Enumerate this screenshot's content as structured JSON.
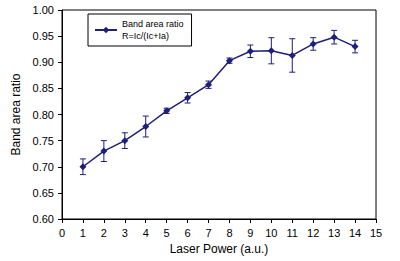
{
  "chart_data": {
    "type": "line",
    "x_label": "Laser Power (a.u.)",
    "y_label": "Band area ratio",
    "annotation": "R=Ic/(Ic+Ia)",
    "x": [
      1,
      2,
      3,
      4,
      5,
      6,
      7,
      8,
      9,
      10,
      11,
      12,
      13,
      14
    ],
    "series": [
      {
        "name": "Band area ratio",
        "color": "#1f1f7a",
        "marker": "diamond",
        "line_style": "solid",
        "values": [
          0.7,
          0.73,
          0.75,
          0.777,
          0.807,
          0.832,
          0.857,
          0.903,
          0.921,
          0.922,
          0.913,
          0.935,
          0.948,
          0.93
        ],
        "errors": [
          0.015,
          0.02,
          0.015,
          0.02,
          0.005,
          0.01,
          0.007,
          0.005,
          0.012,
          0.025,
          0.032,
          0.012,
          0.013,
          0.012
        ]
      }
    ],
    "xlim": [
      0,
      15
    ],
    "xticks": [
      0,
      1,
      2,
      3,
      4,
      5,
      6,
      7,
      8,
      9,
      10,
      11,
      12,
      13,
      14,
      15
    ],
    "ylim": [
      0.6,
      1.0
    ],
    "yticks": [
      {
        "value": 0.6,
        "label": "0.60"
      },
      {
        "value": 0.65,
        "label": "0.65"
      },
      {
        "value": 0.7,
        "label": "0.70"
      },
      {
        "value": 0.75,
        "label": "0.75"
      },
      {
        "value": 0.8,
        "label": "0.80"
      },
      {
        "value": 0.85,
        "label": "0.85"
      },
      {
        "value": 0.9,
        "label": "0.90"
      },
      {
        "value": 0.95,
        "label": "0.95"
      },
      {
        "value": 1.0,
        "label": "1.00"
      }
    ],
    "grid": false,
    "legend": "upper left"
  }
}
